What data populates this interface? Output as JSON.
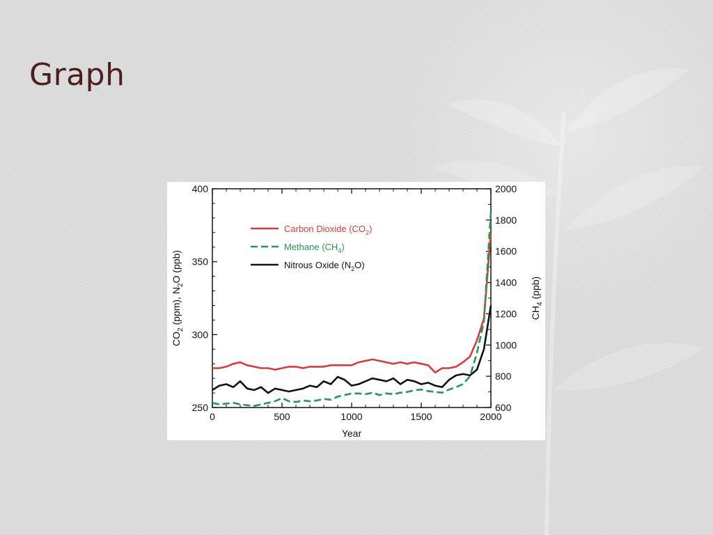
{
  "slide": {
    "title": "Graph"
  },
  "colors": {
    "co2": "#d93a3a",
    "ch4": "#1e9a52",
    "n2o": "#111111",
    "title": "#4a1f1f"
  },
  "chart_data": {
    "type": "line",
    "xlabel": "Year",
    "ylabel_left": "CO2 (ppm), N2O (ppb)",
    "ylabel_right": "CH4 (ppb)",
    "xlim": [
      0,
      2000
    ],
    "ylim_left": [
      250,
      400
    ],
    "ylim_right": [
      600,
      2000
    ],
    "x_ticks": [
      0,
      500,
      1000,
      1500,
      2000
    ],
    "y_left_ticks": [
      250,
      300,
      350,
      400
    ],
    "y_right_ticks": [
      600,
      800,
      1000,
      1200,
      1400,
      1600,
      1800,
      2000
    ],
    "grid": false,
    "legend_position": "upper-left",
    "series": [
      {
        "name": "Carbon Dioxide (CO2)",
        "label_main": "Carbon Dioxide (CO",
        "label_sub": "2",
        "label_end": ")",
        "axis": "left",
        "style": "solid",
        "color": "#d93a3a",
        "x": [
          0,
          50,
          100,
          150,
          200,
          250,
          300,
          350,
          400,
          450,
          500,
          550,
          600,
          650,
          700,
          750,
          800,
          850,
          900,
          950,
          1000,
          1050,
          1100,
          1150,
          1200,
          1250,
          1300,
          1350,
          1400,
          1450,
          1500,
          1550,
          1600,
          1650,
          1700,
          1750,
          1800,
          1850,
          1900,
          1950,
          2000
        ],
        "y": [
          277,
          277,
          278,
          280,
          281,
          279,
          278,
          277,
          277,
          276,
          277,
          278,
          278,
          277,
          278,
          278,
          278,
          279,
          279,
          279,
          279,
          281,
          282,
          283,
          282,
          281,
          280,
          281,
          280,
          281,
          280,
          279,
          274,
          277,
          277,
          278,
          281,
          285,
          296,
          311,
          370
        ]
      },
      {
        "name": "Methane (CH4)",
        "label_main": "Methane (CH",
        "label_sub": "4",
        "label_end": ")",
        "axis": "right",
        "style": "dashed",
        "color": "#1e9a52",
        "x": [
          0,
          50,
          100,
          150,
          200,
          250,
          300,
          350,
          400,
          450,
          500,
          550,
          600,
          650,
          700,
          750,
          800,
          850,
          900,
          950,
          1000,
          1050,
          1100,
          1150,
          1200,
          1250,
          1300,
          1350,
          1400,
          1450,
          1500,
          1550,
          1600,
          1650,
          1700,
          1750,
          1800,
          1850,
          1900,
          1950,
          2000
        ],
        "y": [
          630,
          620,
          625,
          630,
          620,
          615,
          610,
          620,
          630,
          640,
          660,
          640,
          635,
          645,
          640,
          645,
          655,
          650,
          670,
          680,
          690,
          690,
          685,
          695,
          680,
          690,
          685,
          695,
          700,
          710,
          715,
          705,
          700,
          695,
          715,
          730,
          750,
          800,
          950,
          1150,
          1850
        ]
      },
      {
        "name": "Nitrous Oxide (N2O)",
        "label_main": "Nitrous Oxide (N",
        "label_sub": "2",
        "label_end": "O)",
        "axis": "left",
        "style": "solid",
        "color": "#111111",
        "x": [
          0,
          50,
          100,
          150,
          200,
          250,
          300,
          350,
          400,
          450,
          500,
          550,
          600,
          650,
          700,
          750,
          800,
          850,
          900,
          950,
          1000,
          1050,
          1100,
          1150,
          1200,
          1250,
          1300,
          1350,
          1400,
          1450,
          1500,
          1550,
          1600,
          1650,
          1700,
          1750,
          1800,
          1850,
          1900,
          1950,
          2000
        ],
        "y": [
          262,
          265,
          266,
          264,
          268,
          263,
          262,
          264,
          260,
          263,
          262,
          261,
          262,
          263,
          265,
          264,
          268,
          266,
          271,
          269,
          265,
          266,
          268,
          270,
          269,
          268,
          270,
          266,
          269,
          268,
          266,
          267,
          265,
          264,
          269,
          272,
          273,
          272,
          276,
          290,
          320
        ]
      }
    ]
  }
}
